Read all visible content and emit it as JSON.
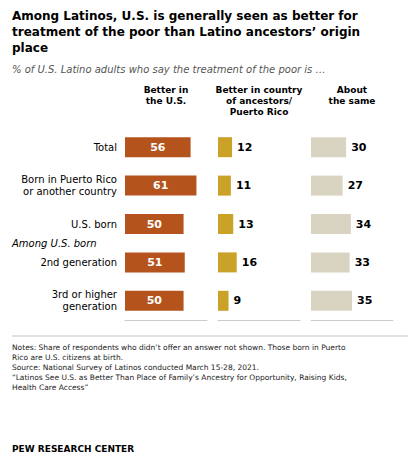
{
  "chart_data": {
    "type": "bar",
    "orientation": "horizontal",
    "title": "Among Latinos, U.S. is generally seen as better for\ntreatment of the poor than Latino ancestors’ origin\nplace",
    "subtitle": "% of U.S. Latino adults who say the treatment of the poor is …",
    "categories": [
      "Total",
      "Born in Puerto Rico\nor another country",
      "U.S. born",
      "2nd generation",
      "3rd or higher\ngeneration"
    ],
    "series": [
      {
        "name": "Better in\nthe U.S.",
        "color": "#b5531c",
        "values": [
          56,
          61,
          50,
          51,
          50
        ]
      },
      {
        "name": "Better in country\nof ancestors/\nPuerto Rico",
        "color": "#c9a227",
        "values": [
          12,
          11,
          13,
          16,
          9
        ]
      },
      {
        "name": "About\nthe same",
        "color": "#d9d4c1",
        "values": [
          30,
          27,
          34,
          33,
          35
        ]
      }
    ],
    "annotations": [
      "Among U.S. born"
    ],
    "notes": "Notes: Share of respondents who didn’t offer an answer not shown. Those born in Puerto\nRico are U.S. citizens at birth.\nSource: National Survey of Latinos conducted March 15-28, 2021.\n“Latinos See U.S. as Better Than Place of Family’s Ancestry for Opportunity, Raising Kids,\nHealth Care Access”",
    "source": "PEW RESEARCH CENTER",
    "xlim": [
      0,
      70
    ],
    "data_labels": true,
    "tick_labels": "y",
    "grid": false
  }
}
